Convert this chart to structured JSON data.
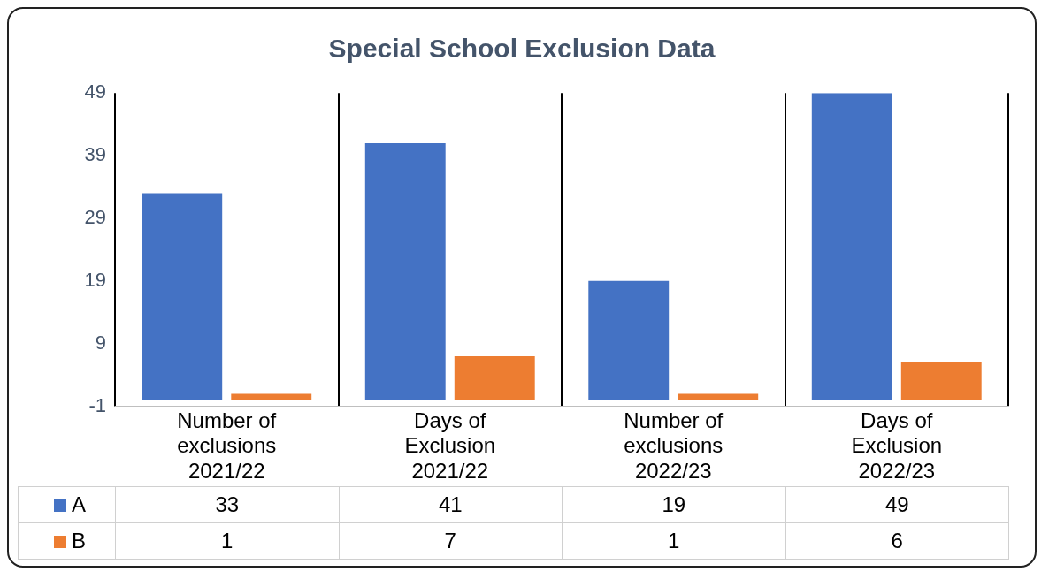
{
  "chart_data": {
    "type": "bar",
    "title": "Special School Exclusion Data",
    "categories": [
      "Number of exclusions 2021/22",
      "Days of Exclusion 2021/22",
      "Number of exclusions 2022/23",
      "Days of Exclusion 2022/23"
    ],
    "series": [
      {
        "name": "A",
        "color": "#4472c4",
        "values": [
          33,
          41,
          19,
          49
        ]
      },
      {
        "name": "B",
        "color": "#ed7d31",
        "values": [
          1,
          7,
          1,
          6
        ]
      }
    ],
    "ylim": [
      -1,
      49
    ],
    "yticks": [
      -1,
      9,
      19,
      29,
      39,
      49
    ],
    "grid": "x",
    "legend": "bottom",
    "data_labels": true
  }
}
